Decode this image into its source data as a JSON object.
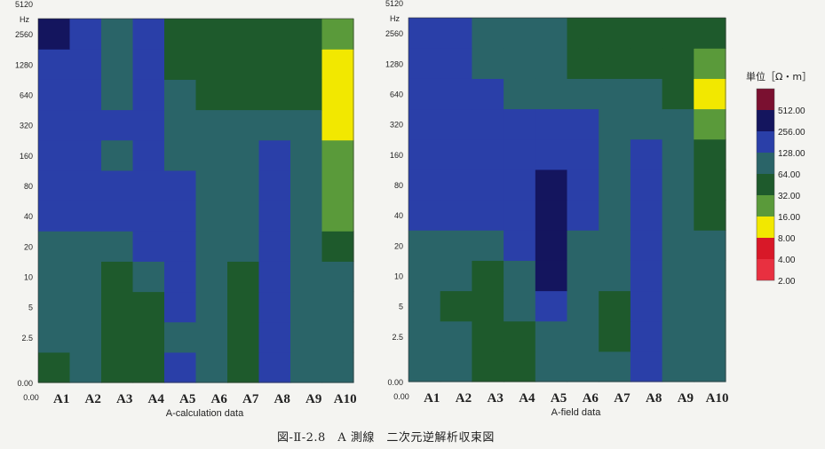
{
  "chart_data": [
    {
      "type": "heatmap",
      "xlabel": "A-calculation data",
      "ylabel": "Hz",
      "x_origin_label": "0.00",
      "y_origin_label": "0.00",
      "categories": [
        "A1",
        "A2",
        "A3",
        "A4",
        "A5",
        "A6",
        "A7",
        "A8",
        "A9",
        "A10"
      ],
      "y_ticks": [
        "2.5",
        "5",
        "10",
        "20",
        "40",
        "80",
        "160",
        "320",
        "640",
        "1280",
        "2560",
        "5120"
      ],
      "value_unit": "Ω・m",
      "z_grid_rows_low_to_high_freq": [
        [
          60,
          80,
          40,
          45,
          150,
          110,
          60,
          190,
          100,
          100
        ],
        [
          80,
          100,
          40,
          40,
          110,
          110,
          60,
          190,
          110,
          95
        ],
        [
          80,
          100,
          40,
          45,
          130,
          110,
          60,
          220,
          110,
          85
        ],
        [
          100,
          110,
          60,
          90,
          220,
          110,
          60,
          230,
          110,
          80
        ],
        [
          100,
          110,
          95,
          140,
          230,
          110,
          70,
          230,
          110,
          50
        ],
        [
          230,
          200,
          150,
          230,
          180,
          110,
          110,
          230,
          110,
          30
        ],
        [
          230,
          200,
          150,
          200,
          180,
          110,
          110,
          230,
          110,
          28
        ],
        [
          200,
          180,
          110,
          130,
          120,
          100,
          90,
          170,
          100,
          25
        ],
        [
          220,
          210,
          150,
          130,
          110,
          80,
          90,
          120,
          80,
          15
        ],
        [
          250,
          230,
          120,
          140,
          110,
          60,
          60,
          60,
          60,
          12
        ],
        [
          240,
          210,
          95,
          150,
          60,
          60,
          60,
          60,
          60,
          13
        ],
        [
          300,
          220,
          80,
          140,
          60,
          60,
          60,
          60,
          60,
          30
        ]
      ]
    },
    {
      "type": "heatmap",
      "xlabel": "A-field data",
      "ylabel": "Hz",
      "x_origin_label": "0.00",
      "y_origin_label": "0.00",
      "categories": [
        "A1",
        "A2",
        "A3",
        "A4",
        "A5",
        "A6",
        "A7",
        "A8",
        "A9",
        "A10"
      ],
      "y_ticks": [
        "2.5",
        "5",
        "10",
        "20",
        "40",
        "80",
        "160",
        "320",
        "640",
        "1280",
        "2560",
        "5120"
      ],
      "value_unit": "Ω・m",
      "z_grid_rows_low_to_high_freq": [
        [
          90,
          100,
          60,
          55,
          110,
          100,
          70,
          190,
          90,
          110
        ],
        [
          90,
          100,
          60,
          45,
          110,
          110,
          60,
          200,
          110,
          100
        ],
        [
          90,
          60,
          60,
          90,
          200,
          95,
          60,
          220,
          110,
          100
        ],
        [
          100,
          110,
          60,
          95,
          300,
          110,
          70,
          230,
          110,
          90
        ],
        [
          110,
          110,
          110,
          140,
          330,
          120,
          80,
          230,
          110,
          80
        ],
        [
          220,
          200,
          130,
          140,
          330,
          160,
          110,
          240,
          110,
          50
        ],
        [
          220,
          200,
          130,
          230,
          280,
          180,
          110,
          240,
          110,
          40
        ],
        [
          220,
          200,
          170,
          230,
          240,
          200,
          110,
          240,
          110,
          35
        ],
        [
          240,
          220,
          150,
          170,
          160,
          130,
          100,
          100,
          80,
          30
        ],
        [
          240,
          220,
          130,
          120,
          110,
          80,
          80,
          80,
          60,
          15
        ],
        [
          240,
          200,
          110,
          120,
          100,
          60,
          60,
          60,
          60,
          30
        ],
        [
          200,
          140,
          95,
          95,
          70,
          60,
          60,
          60,
          60,
          40
        ]
      ]
    }
  ],
  "legend": {
    "title": "単位［Ω・m］",
    "levels": [
      "512.00",
      "256.00",
      "128.00",
      "64.00",
      "32.00",
      "16.00",
      "8.00",
      "4.00",
      "2.00"
    ],
    "colors": [
      "#7a1030",
      "#14155e",
      "#2a3fa8",
      "#2a6468",
      "#1e5a2c",
      "#5a9a3a",
      "#f2e800",
      "#d81828",
      "#e83040"
    ]
  },
  "caption": "図-Ⅱ-2.8　A 測線　二次元逆解析収束図"
}
